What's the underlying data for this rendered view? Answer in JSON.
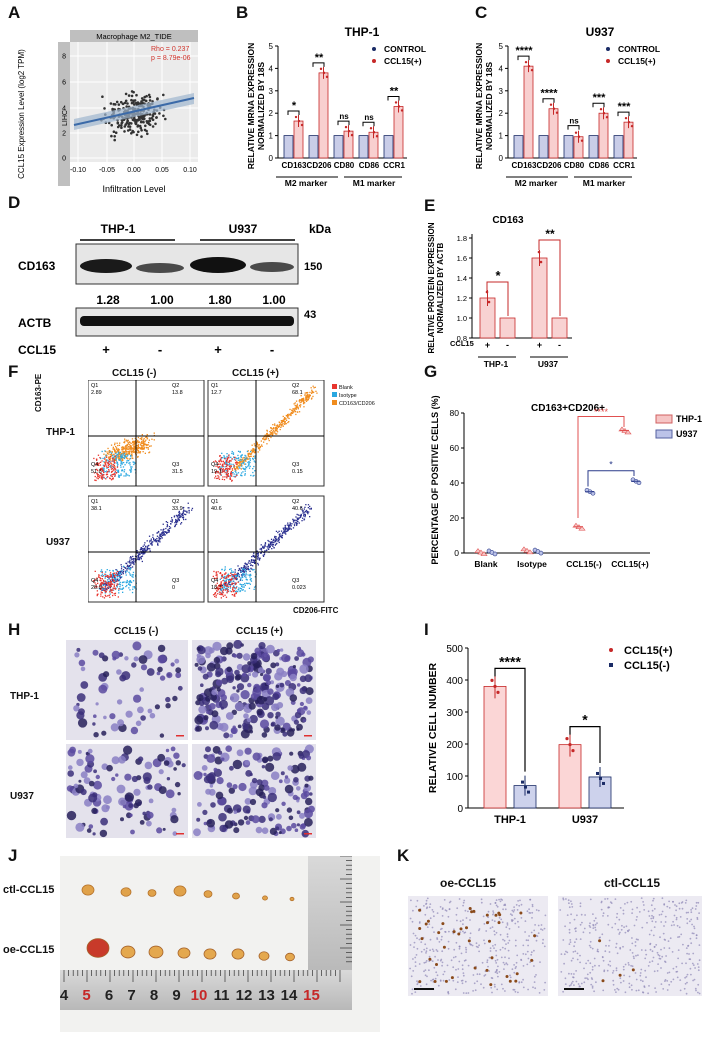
{
  "panel_letters": {
    "A": "A",
    "B": "B",
    "C": "C",
    "D": "D",
    "E": "E",
    "F": "F",
    "G": "G",
    "H": "H",
    "I": "I",
    "J": "J",
    "K": "K"
  },
  "panelA": {
    "strip_title": "Macrophage M2_TIDE",
    "side_strip": "LIHC",
    "ylabel": "CCL15 Expression Level (log2 TPM)",
    "xlabel": "Infiltration Level",
    "rho": "Rho = 0.237",
    "p": "p = 8.79e-06",
    "xticks": [
      "-0.10",
      "-0.05",
      "0.00",
      "0.05",
      "0.10"
    ],
    "yticks": [
      "0",
      "2",
      "4",
      "6",
      "8"
    ]
  },
  "panelB": {
    "title": "THP-1",
    "ylabel1": "RELATIVE MRNA EXPRESSION",
    "ylabel2": "NORMALIZED BY 18S",
    "legend": [
      "CONTROL",
      "CCL15(+)"
    ],
    "groups": [
      "M2 marker",
      "M1 marker"
    ]
  },
  "panelC": {
    "title": "U937",
    "ylabel1": "RELATIVE MRNA EXPRESSION",
    "ylabel2": "NORMALIZED BY 18S",
    "legend": [
      "CONTROL",
      "CCL15(+)"
    ],
    "groups": [
      "M2 marker",
      "M1 marker"
    ]
  },
  "panelD": {
    "cols": [
      "THP-1",
      "U937"
    ],
    "kda": "kDa",
    "rows": [
      {
        "label": "CD163",
        "kda": "150"
      },
      {
        "label": "ACTB",
        "kda": "43"
      }
    ],
    "quant": [
      "1.28",
      "1.00",
      "1.80",
      "1.00"
    ],
    "ccl15_label": "CCL15",
    "ccl15_signs": [
      "+",
      "-",
      "+",
      "-"
    ]
  },
  "panelE": {
    "title": "CD163",
    "ylabel1": "RELATIVE PROTEIN EXPRESSION",
    "ylabel2": "NORMALIZED BY ACTB",
    "ccl15_label": "CCL15",
    "signs": [
      "+",
      "-",
      "+",
      "-"
    ],
    "groups": [
      "THP-1",
      "U937"
    ],
    "yticks": [
      "0.8",
      "1.0",
      "1.2",
      "1.4",
      "1.6",
      "1.8"
    ]
  },
  "panelF": {
    "col_titles": [
      "CCL15 (-)",
      "CCL15 (+)"
    ],
    "row_titles": [
      "THP-1",
      "U937"
    ],
    "yaxis": "CD163-PE",
    "xaxis": "CD206-FITC",
    "legend": [
      "Blank",
      "Isotype",
      "CD163/CD206"
    ],
    "quadrants": [
      [
        "Q1",
        "2.89",
        "Q2",
        "13.8",
        "Q3",
        "31.5",
        "Q4",
        "51.8"
      ],
      [
        "Q1",
        "12.7",
        "Q2",
        "68.1",
        "Q3",
        "0.15",
        "Q4",
        "19.1"
      ],
      [
        "Q1",
        "38.1",
        "Q2",
        "33.9",
        "Q3",
        "0",
        "Q4",
        "28.0"
      ],
      [
        "Q1",
        "40.6",
        "Q2",
        "40.6",
        "Q3",
        "0.023",
        "Q4",
        "18.7"
      ]
    ],
    "colors": {
      "blank": "#e8352e",
      "isotype": "#29a7e0",
      "pos_thp": "#f08c1e",
      "pos_u937": "#2a2f8f"
    }
  },
  "panelG": {
    "title": "CD163+CD206+",
    "ylabel": "PERCENTAGE OF POSITIVE CELLS (%)",
    "legend": [
      "THP-1",
      "U937"
    ],
    "categories": [
      "Blank",
      "Isotype",
      "CCL15(-)",
      "CCL15(+)"
    ],
    "yticks": [
      "0",
      "20",
      "40",
      "60",
      "80"
    ],
    "sig": [
      "****",
      "*"
    ]
  },
  "panelH": {
    "col_titles": [
      "CCL15 (-)",
      "CCL15 (+)"
    ],
    "row_titles": [
      "THP-1",
      "U937"
    ]
  },
  "panelI": {
    "ylabel": "RELATIVE CELL NUMBER",
    "legend": [
      "CCL15(+)",
      "CCL15(-)"
    ],
    "groups": [
      "THP-1",
      "U937"
    ],
    "yticks": [
      "0",
      "100",
      "200",
      "300",
      "400",
      "500"
    ],
    "sig": [
      "****",
      "*"
    ]
  },
  "panelJ": {
    "rows": [
      "ctl-CCL15",
      "oe-CCL15"
    ],
    "ruler": [
      "4",
      "5",
      "6",
      "7",
      "8",
      "9",
      "10",
      "11",
      "12",
      "13",
      "14",
      "15"
    ]
  },
  "panelK": {
    "titles": [
      "oe-CCL15",
      "ctl-CCL15"
    ]
  },
  "chart_data": [
    {
      "type": "bar",
      "id": "B",
      "title": "THP-1",
      "categories": [
        "CD163",
        "CD206",
        "CD80",
        "CD86",
        "CCR1"
      ],
      "series": [
        {
          "name": "CONTROL",
          "values": [
            1,
            1,
            1,
            1,
            1
          ]
        },
        {
          "name": "CCL15(+)",
          "values": [
            1.65,
            3.8,
            1.2,
            1.15,
            2.3
          ]
        }
      ],
      "significance": [
        "*",
        "**",
        "ns",
        "ns",
        "**"
      ],
      "ylim": [
        0,
        5
      ],
      "yticks": [
        "0",
        "1",
        "2",
        "3",
        "4",
        "5"
      ]
    },
    {
      "type": "bar",
      "id": "C",
      "title": "U937",
      "categories": [
        "CD163",
        "CD206",
        "CD80",
        "CD86",
        "CCR1"
      ],
      "series": [
        {
          "name": "CONTROL",
          "values": [
            1,
            1,
            1,
            1,
            1
          ]
        },
        {
          "name": "CCL15(+)",
          "values": [
            4.1,
            2.2,
            0.95,
            2.0,
            1.6
          ]
        }
      ],
      "significance": [
        "****",
        "****",
        "ns",
        "***",
        "***"
      ],
      "ylim": [
        0,
        5
      ],
      "yticks": [
        "0",
        "1",
        "2",
        "3",
        "4",
        "5"
      ]
    },
    {
      "type": "bar",
      "id": "E",
      "title": "CD163",
      "categories": [
        "THP-1 +",
        "THP-1 -",
        "U937 +",
        "U937 -"
      ],
      "values": [
        1.2,
        1.0,
        1.6,
        1.0
      ],
      "significance": [
        "*",
        "**"
      ],
      "ylim": [
        0.8,
        1.8
      ]
    },
    {
      "type": "scatter",
      "id": "G",
      "title": "CD163+CD206+",
      "categories": [
        "Blank",
        "Isotype",
        "CCL15(-)",
        "CCL15(+)"
      ],
      "series": [
        {
          "name": "THP-1",
          "values": [
            0.5,
            1.5,
            15,
            70
          ]
        },
        {
          "name": "U937",
          "values": [
            0.3,
            0.8,
            35,
            41
          ]
        }
      ],
      "ylim": [
        0,
        80
      ]
    },
    {
      "type": "bar",
      "id": "I",
      "categories": [
        "THP-1",
        "U937"
      ],
      "series": [
        {
          "name": "CCL15(+)",
          "values": [
            380,
            198
          ]
        },
        {
          "name": "CCL15(-)",
          "values": [
            70,
            97
          ]
        }
      ],
      "significance": [
        "****",
        "*"
      ],
      "ylim": [
        0,
        500
      ]
    }
  ]
}
